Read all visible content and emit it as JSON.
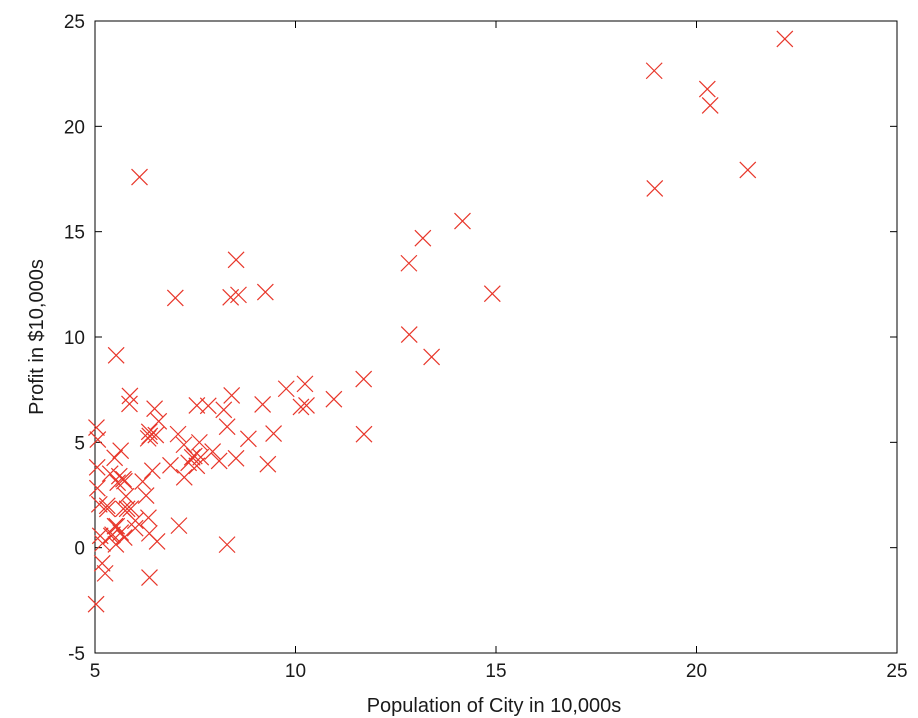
{
  "chart_data": {
    "type": "scatter",
    "title": "",
    "xlabel": "Population of City in 10,000s",
    "ylabel": "Profit in $10,000s",
    "xlim": [
      5,
      25
    ],
    "ylim": [
      -5,
      25
    ],
    "x_ticks": [
      "5",
      "10",
      "15",
      "20",
      "25"
    ],
    "y_ticks": [
      "-5",
      "0",
      "5",
      "10",
      "15",
      "20",
      "25"
    ],
    "x_tick_values": [
      5,
      10,
      15,
      20,
      25
    ],
    "y_tick_values": [
      -5,
      0,
      5,
      10,
      15,
      20,
      25
    ],
    "grid": false,
    "marker": "x",
    "marker_color": "#e8362a",
    "series": [
      {
        "x": [
          6.1101,
          5.5277,
          8.5186,
          7.0032,
          5.8598,
          8.3829,
          7.4764,
          8.5781,
          6.4862,
          5.0546,
          5.7107,
          14.164,
          5.734,
          8.4084,
          5.6407,
          5.3794,
          6.3654,
          5.1301,
          6.4296,
          7.0708,
          6.1891,
          20.27,
          5.4901,
          6.3261,
          5.5649,
          18.945,
          12.828,
          10.957,
          13.176,
          22.203,
          5.2524,
          6.5894,
          9.2482,
          5.8918,
          8.2111,
          7.9334,
          8.0959,
          5.6063,
          12.836,
          6.3534,
          5.4069,
          6.8825,
          11.708,
          5.7737,
          7.8247,
          7.0931,
          5.0702,
          5.8014,
          11.7,
          5.5416,
          7.5402,
          5.3077,
          7.4239,
          7.6031,
          6.3328,
          6.3589,
          6.2742,
          5.6397,
          9.3102,
          9.4536,
          8.8254,
          5.1793,
          21.279,
          14.908,
          18.959,
          7.2182,
          8.2951,
          10.236,
          5.4994,
          20.341,
          10.136,
          7.3345,
          6.0062,
          7.2259,
          5.0269,
          6.5479,
          7.5386,
          5.0365,
          10.274,
          5.1077,
          5.7292,
          5.1884,
          6.3557,
          9.7687,
          6.5159,
          8.5172,
          9.1802,
          6.002,
          5.5204,
          5.0594,
          5.7077,
          7.6366,
          5.8707,
          5.3054,
          8.2934,
          13.394,
          5.4369
        ],
        "y": [
          17.592,
          9.1302,
          13.662,
          11.854,
          6.8233,
          11.886,
          4.3483,
          12.0,
          6.5987,
          3.8166,
          3.2522,
          15.505,
          3.1551,
          7.2258,
          0.71618,
          3.5129,
          5.3048,
          0.56077,
          3.6518,
          5.3893,
          3.1386,
          21.767,
          4.263,
          5.1875,
          3.0825,
          22.638,
          13.501,
          7.0467,
          14.692,
          24.147,
          -1.22,
          5.9966,
          12.134,
          1.8495,
          6.5426,
          4.5623,
          4.1164,
          3.3928,
          10.117,
          5.4974,
          0.55657,
          3.9115,
          5.3854,
          2.4406,
          6.7318,
          1.0463,
          5.1337,
          1.844,
          8.0043,
          1.0179,
          6.7504,
          1.8396,
          4.2885,
          4.9981,
          1.4233,
          -1.4211,
          2.4756,
          4.6042,
          3.9624,
          5.4141,
          5.1694,
          -0.74279,
          17.929,
          12.054,
          17.054,
          4.8852,
          5.7442,
          7.7754,
          1.0173,
          20.992,
          6.6799,
          4.0259,
          1.2784,
          3.3411,
          -2.6807,
          0.29678,
          3.8845,
          5.7014,
          6.7526,
          2.0576,
          0.47953,
          0.20421,
          0.67861,
          7.5435,
          5.3436,
          4.2415,
          6.7981,
          0.92695,
          0.152,
          2.8214,
          1.8451,
          4.2959,
          7.2029,
          1.9869,
          0.14454,
          9.0551,
          0.61705
        ]
      }
    ]
  }
}
